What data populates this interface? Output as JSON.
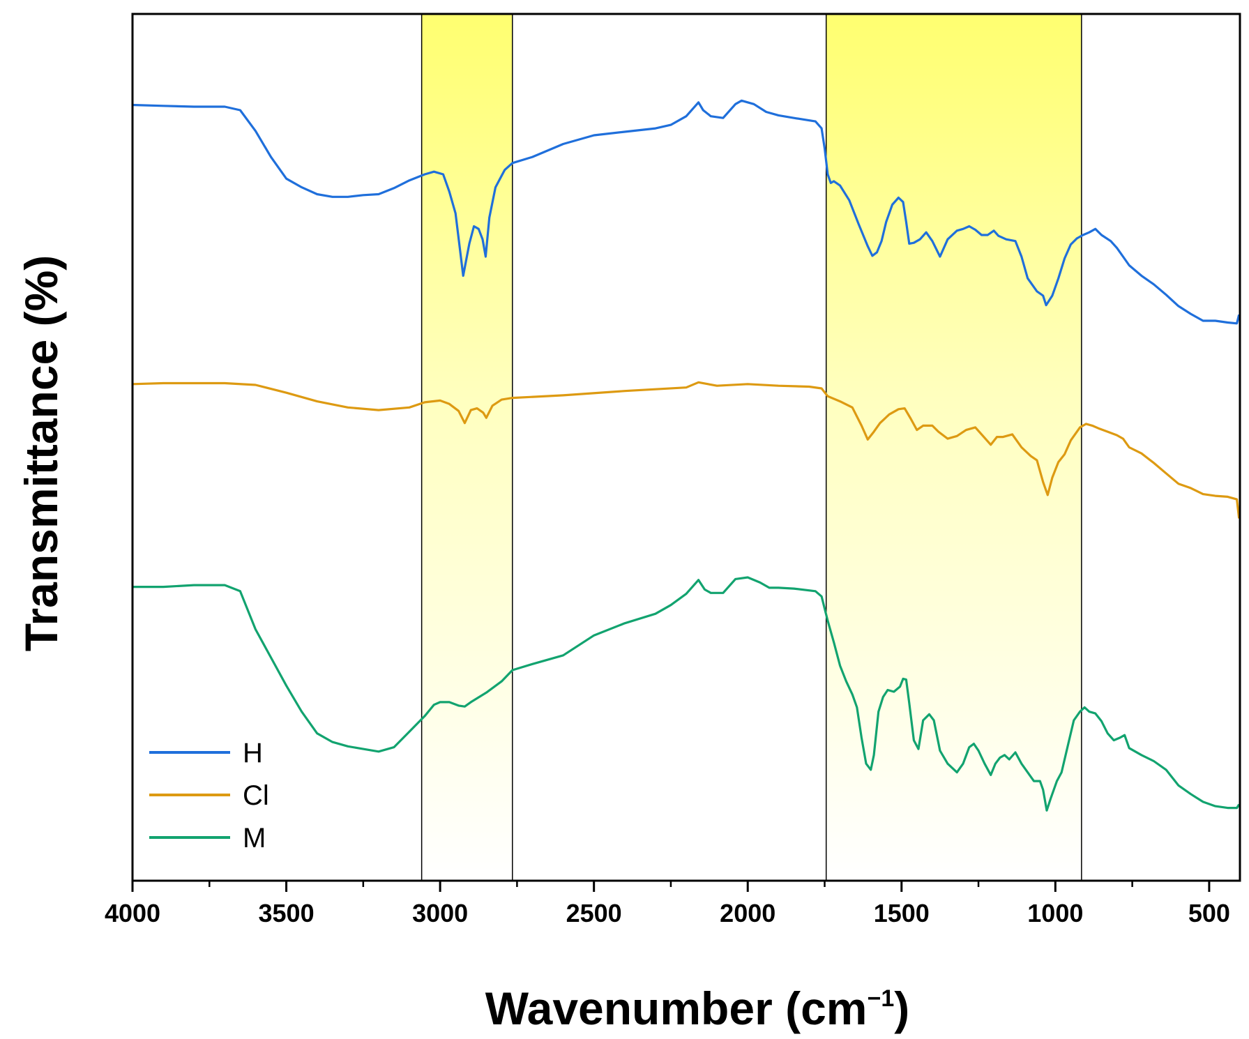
{
  "chart_data": {
    "type": "line",
    "title": "",
    "xlabel": "Wavenumber (cm",
    "xlabel_superscript": "−1",
    "xlabel_close": ")",
    "ylabel": "Transmittance (%)",
    "xlim": [
      4000,
      400
    ],
    "x_reversed": true,
    "y_ticks_shown": false,
    "xticks": [
      4000,
      3500,
      3000,
      2500,
      2000,
      1500,
      1000,
      500
    ],
    "xtick_labels": [
      "4000",
      "3500",
      "3000",
      "2500",
      "2000",
      "1500",
      "1000",
      "500"
    ],
    "ylim": [
      0,
      100
    ],
    "grid": false,
    "legend_position": "bottom-left",
    "highlight_bands": [
      {
        "x_from": 3060,
        "x_to": 2765,
        "color": "#ffff70"
      },
      {
        "x_from": 1745,
        "x_to": 915,
        "color": "#ffff70"
      }
    ],
    "series": [
      {
        "name": "H",
        "color": "#1f6fdb",
        "points": [
          [
            4000,
            89.5
          ],
          [
            3900,
            89.4
          ],
          [
            3800,
            89.3
          ],
          [
            3700,
            89.3
          ],
          [
            3650,
            88.9
          ],
          [
            3600,
            86.5
          ],
          [
            3550,
            83.5
          ],
          [
            3500,
            81
          ],
          [
            3450,
            80
          ],
          [
            3400,
            79.2
          ],
          [
            3350,
            78.9
          ],
          [
            3300,
            78.9
          ],
          [
            3250,
            79.1
          ],
          [
            3200,
            79.2
          ],
          [
            3150,
            79.9
          ],
          [
            3100,
            80.8
          ],
          [
            3050,
            81.5
          ],
          [
            3020,
            81.8
          ],
          [
            2990,
            81.5
          ],
          [
            2970,
            79.5
          ],
          [
            2950,
            77
          ],
          [
            2925,
            69.8
          ],
          [
            2905,
            73.5
          ],
          [
            2890,
            75.5
          ],
          [
            2875,
            75.2
          ],
          [
            2862,
            74
          ],
          [
            2852,
            72
          ],
          [
            2840,
            76.5
          ],
          [
            2820,
            80
          ],
          [
            2790,
            82
          ],
          [
            2765,
            82.8
          ],
          [
            2700,
            83.5
          ],
          [
            2600,
            85
          ],
          [
            2500,
            86
          ],
          [
            2400,
            86.4
          ],
          [
            2300,
            86.8
          ],
          [
            2250,
            87.2
          ],
          [
            2200,
            88.2
          ],
          [
            2160,
            89.8
          ],
          [
            2145,
            88.9
          ],
          [
            2120,
            88.2
          ],
          [
            2080,
            88
          ],
          [
            2040,
            89.6
          ],
          [
            2020,
            90
          ],
          [
            1980,
            89.6
          ],
          [
            1940,
            88.7
          ],
          [
            1900,
            88.3
          ],
          [
            1850,
            88
          ],
          [
            1780,
            87.6
          ],
          [
            1760,
            86.8
          ],
          [
            1750,
            84.5
          ],
          [
            1740,
            81.5
          ],
          [
            1730,
            80.5
          ],
          [
            1720,
            80.7
          ],
          [
            1700,
            80.2
          ],
          [
            1670,
            78.5
          ],
          [
            1640,
            75.8
          ],
          [
            1610,
            73.2
          ],
          [
            1595,
            72.1
          ],
          [
            1580,
            72.5
          ],
          [
            1565,
            73.8
          ],
          [
            1550,
            76
          ],
          [
            1530,
            78
          ],
          [
            1510,
            78.8
          ],
          [
            1495,
            78.3
          ],
          [
            1485,
            76
          ],
          [
            1475,
            73.5
          ],
          [
            1460,
            73.6
          ],
          [
            1440,
            74
          ],
          [
            1420,
            74.8
          ],
          [
            1400,
            73.8
          ],
          [
            1375,
            72
          ],
          [
            1350,
            74
          ],
          [
            1320,
            75
          ],
          [
            1300,
            75.2
          ],
          [
            1280,
            75.5
          ],
          [
            1260,
            75.1
          ],
          [
            1240,
            74.5
          ],
          [
            1220,
            74.5
          ],
          [
            1200,
            75
          ],
          [
            1185,
            74.4
          ],
          [
            1160,
            74
          ],
          [
            1130,
            73.8
          ],
          [
            1110,
            72
          ],
          [
            1090,
            69.5
          ],
          [
            1060,
            68
          ],
          [
            1040,
            67.5
          ],
          [
            1030,
            66.4
          ],
          [
            1010,
            67.5
          ],
          [
            990,
            69.5
          ],
          [
            970,
            71.8
          ],
          [
            950,
            73.4
          ],
          [
            930,
            74.1
          ],
          [
            910,
            74.5
          ],
          [
            890,
            74.8
          ],
          [
            870,
            75.2
          ],
          [
            850,
            74.5
          ],
          [
            820,
            73.8
          ],
          [
            800,
            73
          ],
          [
            780,
            72
          ],
          [
            760,
            71
          ],
          [
            720,
            69.8
          ],
          [
            680,
            68.8
          ],
          [
            640,
            67.6
          ],
          [
            600,
            66.3
          ],
          [
            560,
            65.4
          ],
          [
            520,
            64.6
          ],
          [
            480,
            64.6
          ],
          [
            440,
            64.4
          ],
          [
            410,
            64.3
          ],
          [
            403,
            65.3
          ]
        ]
      },
      {
        "name": "Cl",
        "color": "#dd9a12",
        "points": [
          [
            4000,
            57.3
          ],
          [
            3900,
            57.4
          ],
          [
            3800,
            57.4
          ],
          [
            3700,
            57.4
          ],
          [
            3600,
            57.2
          ],
          [
            3500,
            56.3
          ],
          [
            3400,
            55.3
          ],
          [
            3300,
            54.6
          ],
          [
            3200,
            54.3
          ],
          [
            3100,
            54.6
          ],
          [
            3050,
            55.2
          ],
          [
            3000,
            55.4
          ],
          [
            2970,
            55
          ],
          [
            2940,
            54.2
          ],
          [
            2920,
            52.8
          ],
          [
            2900,
            54.3
          ],
          [
            2880,
            54.5
          ],
          [
            2860,
            54
          ],
          [
            2850,
            53.4
          ],
          [
            2830,
            54.8
          ],
          [
            2800,
            55.5
          ],
          [
            2765,
            55.7
          ],
          [
            2600,
            56
          ],
          [
            2400,
            56.5
          ],
          [
            2200,
            56.9
          ],
          [
            2160,
            57.5
          ],
          [
            2100,
            57.1
          ],
          [
            2000,
            57.3
          ],
          [
            1900,
            57.1
          ],
          [
            1800,
            57
          ],
          [
            1760,
            56.8
          ],
          [
            1740,
            55.9
          ],
          [
            1700,
            55.3
          ],
          [
            1660,
            54.6
          ],
          [
            1630,
            52.5
          ],
          [
            1610,
            50.9
          ],
          [
            1590,
            51.8
          ],
          [
            1570,
            52.8
          ],
          [
            1540,
            53.8
          ],
          [
            1510,
            54.4
          ],
          [
            1490,
            54.5
          ],
          [
            1470,
            53.3
          ],
          [
            1450,
            52
          ],
          [
            1430,
            52.5
          ],
          [
            1400,
            52.5
          ],
          [
            1380,
            51.8
          ],
          [
            1350,
            51
          ],
          [
            1320,
            51.3
          ],
          [
            1290,
            52
          ],
          [
            1260,
            52.3
          ],
          [
            1240,
            51.5
          ],
          [
            1210,
            50.3
          ],
          [
            1190,
            51.2
          ],
          [
            1170,
            51.2
          ],
          [
            1140,
            51.5
          ],
          [
            1110,
            50
          ],
          [
            1080,
            49
          ],
          [
            1060,
            48.5
          ],
          [
            1040,
            46
          ],
          [
            1025,
            44.5
          ],
          [
            1010,
            46.5
          ],
          [
            990,
            48.3
          ],
          [
            970,
            49.2
          ],
          [
            950,
            50.8
          ],
          [
            920,
            52.3
          ],
          [
            900,
            52.7
          ],
          [
            880,
            52.5
          ],
          [
            860,
            52.2
          ],
          [
            830,
            51.8
          ],
          [
            800,
            51.4
          ],
          [
            780,
            51
          ],
          [
            760,
            50
          ],
          [
            720,
            49.3
          ],
          [
            680,
            48.2
          ],
          [
            640,
            47
          ],
          [
            600,
            45.8
          ],
          [
            560,
            45.3
          ],
          [
            520,
            44.6
          ],
          [
            480,
            44.4
          ],
          [
            440,
            44.3
          ],
          [
            410,
            44
          ],
          [
            403,
            41.8
          ]
        ]
      },
      {
        "name": "M",
        "color": "#12a36f",
        "points": [
          [
            4000,
            33.9
          ],
          [
            3900,
            33.9
          ],
          [
            3800,
            34.1
          ],
          [
            3700,
            34.1
          ],
          [
            3650,
            33.4
          ],
          [
            3600,
            29
          ],
          [
            3500,
            22.5
          ],
          [
            3450,
            19.5
          ],
          [
            3400,
            17
          ],
          [
            3350,
            16
          ],
          [
            3300,
            15.5
          ],
          [
            3250,
            15.2
          ],
          [
            3200,
            14.9
          ],
          [
            3150,
            15.4
          ],
          [
            3100,
            17.2
          ],
          [
            3050,
            19
          ],
          [
            3020,
            20.3
          ],
          [
            3000,
            20.6
          ],
          [
            2970,
            20.6
          ],
          [
            2940,
            20.2
          ],
          [
            2920,
            20.1
          ],
          [
            2900,
            20.6
          ],
          [
            2850,
            21.7
          ],
          [
            2800,
            23
          ],
          [
            2765,
            24.3
          ],
          [
            2700,
            25
          ],
          [
            2600,
            26
          ],
          [
            2500,
            28.3
          ],
          [
            2400,
            29.7
          ],
          [
            2300,
            30.8
          ],
          [
            2250,
            31.8
          ],
          [
            2200,
            33.1
          ],
          [
            2160,
            34.7
          ],
          [
            2140,
            33.6
          ],
          [
            2120,
            33.2
          ],
          [
            2080,
            33.2
          ],
          [
            2040,
            34.8
          ],
          [
            2000,
            35
          ],
          [
            1960,
            34.4
          ],
          [
            1930,
            33.8
          ],
          [
            1900,
            33.8
          ],
          [
            1850,
            33.7
          ],
          [
            1780,
            33.4
          ],
          [
            1760,
            32.8
          ],
          [
            1740,
            30
          ],
          [
            1720,
            27.5
          ],
          [
            1700,
            24.8
          ],
          [
            1680,
            23
          ],
          [
            1660,
            21.5
          ],
          [
            1645,
            20
          ],
          [
            1630,
            16.5
          ],
          [
            1615,
            13.5
          ],
          [
            1600,
            12.8
          ],
          [
            1590,
            14.5
          ],
          [
            1575,
            19.5
          ],
          [
            1560,
            21.2
          ],
          [
            1545,
            22
          ],
          [
            1525,
            21.8
          ],
          [
            1505,
            22.4
          ],
          [
            1495,
            23.3
          ],
          [
            1485,
            23.2
          ],
          [
            1475,
            20.5
          ],
          [
            1460,
            16.2
          ],
          [
            1445,
            15.2
          ],
          [
            1430,
            18.5
          ],
          [
            1410,
            19.2
          ],
          [
            1395,
            18.5
          ],
          [
            1375,
            15
          ],
          [
            1350,
            13.5
          ],
          [
            1320,
            12.5
          ],
          [
            1300,
            13.5
          ],
          [
            1280,
            15.4
          ],
          [
            1265,
            15.8
          ],
          [
            1250,
            15
          ],
          [
            1230,
            13.5
          ],
          [
            1210,
            12.2
          ],
          [
            1195,
            13.5
          ],
          [
            1180,
            14.2
          ],
          [
            1165,
            14.5
          ],
          [
            1150,
            14
          ],
          [
            1130,
            14.8
          ],
          [
            1110,
            13.5
          ],
          [
            1090,
            12.5
          ],
          [
            1070,
            11.5
          ],
          [
            1050,
            11.5
          ],
          [
            1040,
            10.5
          ],
          [
            1028,
            8.1
          ],
          [
            1015,
            9.5
          ],
          [
            995,
            11.5
          ],
          [
            980,
            12.5
          ],
          [
            960,
            15.5
          ],
          [
            940,
            18.5
          ],
          [
            920,
            19.5
          ],
          [
            905,
            20
          ],
          [
            890,
            19.5
          ],
          [
            870,
            19.3
          ],
          [
            850,
            18.4
          ],
          [
            830,
            17
          ],
          [
            810,
            16.2
          ],
          [
            790,
            16.5
          ],
          [
            775,
            16.8
          ],
          [
            760,
            15.3
          ],
          [
            720,
            14.5
          ],
          [
            680,
            13.8
          ],
          [
            640,
            12.8
          ],
          [
            600,
            11
          ],
          [
            560,
            10
          ],
          [
            520,
            9.1
          ],
          [
            480,
            8.6
          ],
          [
            440,
            8.4
          ],
          [
            410,
            8.4
          ],
          [
            403,
            8.8
          ]
        ]
      }
    ]
  }
}
